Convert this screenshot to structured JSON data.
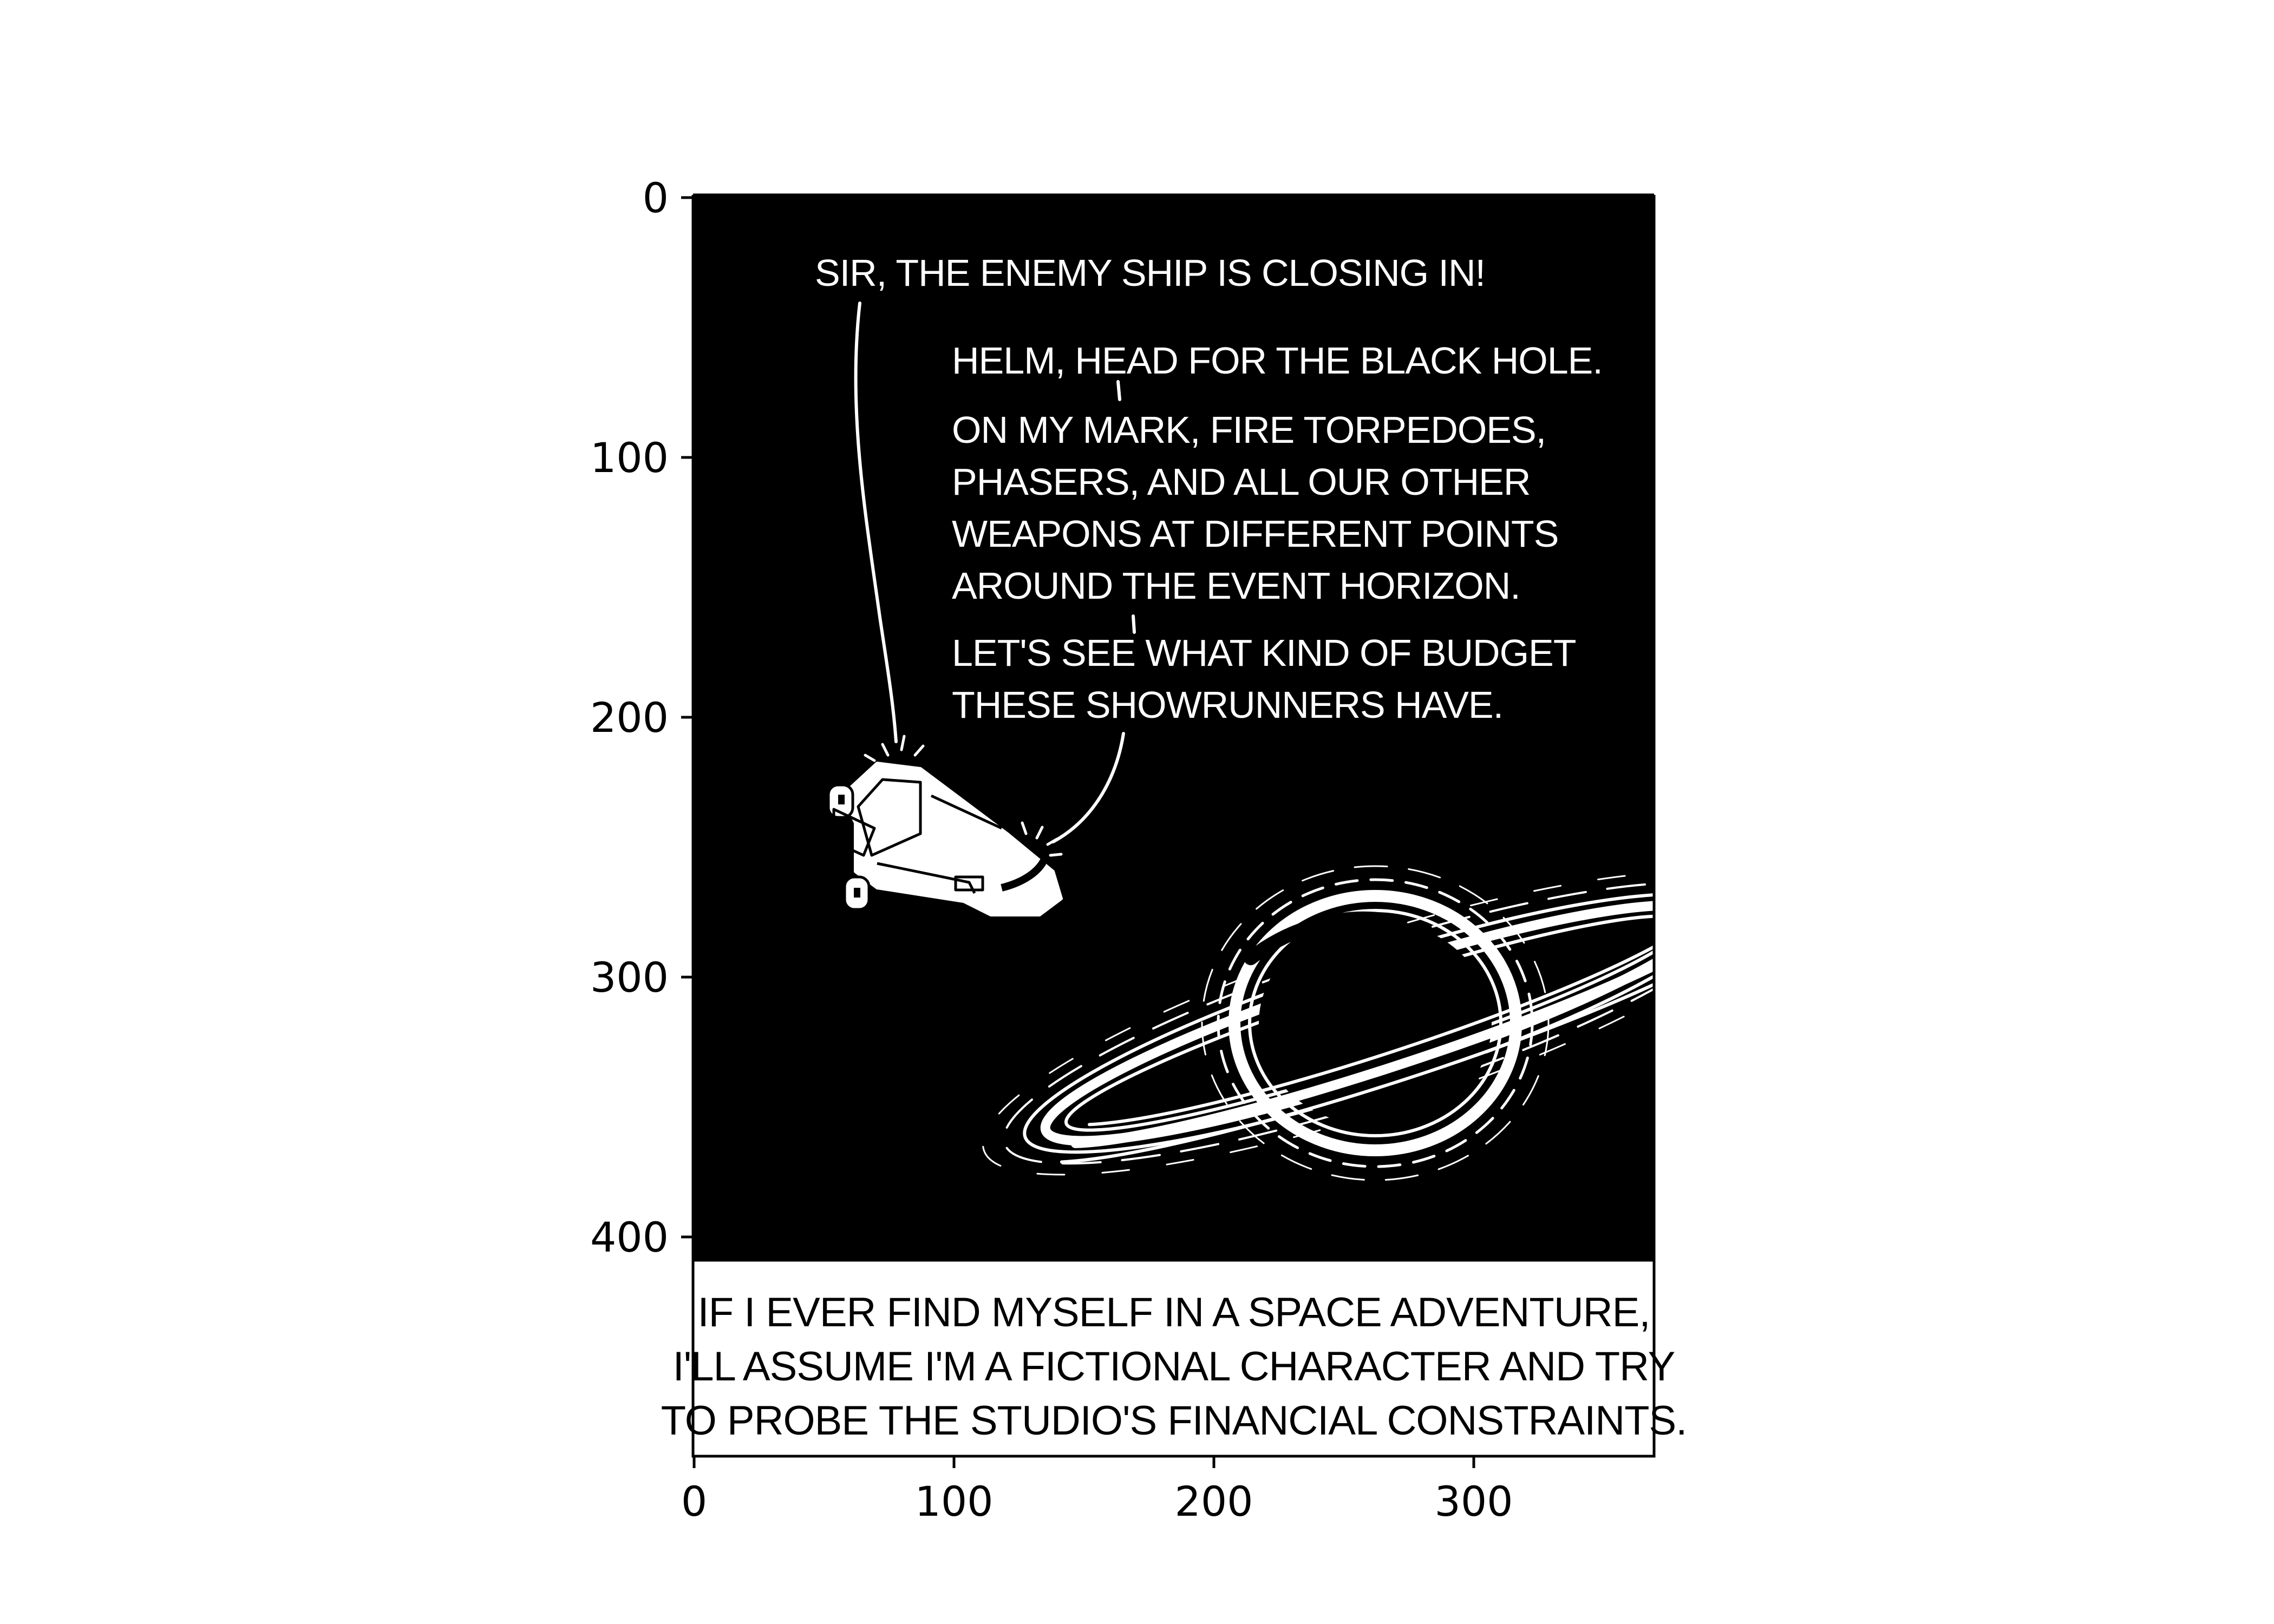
{
  "image_axes": {
    "x_ticks": [
      "0",
      "100",
      "200",
      "300"
    ],
    "y_ticks": [
      "0",
      "100",
      "200",
      "300",
      "400"
    ]
  },
  "comic": {
    "speech_1": "SIR, THE ENEMY SHIP IS CLOSING IN!",
    "speech_2_line_1": "HELM, HEAD FOR THE BLACK HOLE.",
    "speech_2_lines": [
      "ON MY MARK, FIRE TORPEDOES,",
      "PHASERS, AND ALL OUR OTHER",
      "WEAPONS AT DIFFERENT POINTS",
      "AROUND THE EVENT HORIZON."
    ],
    "speech_3_lines": [
      "LET'S SEE WHAT KIND OF BUDGET",
      "THESE SHOWRUNNERS HAVE."
    ],
    "caption_lines": [
      "IF I EVER FIND MYSELF IN A SPACE ADVENTURE,",
      "I'LL ASSUME I'M A FICTIONAL CHARACTER AND TRY",
      "TO PROBE THE STUDIO'S FINANCIAL CONSTRAINTS."
    ]
  }
}
